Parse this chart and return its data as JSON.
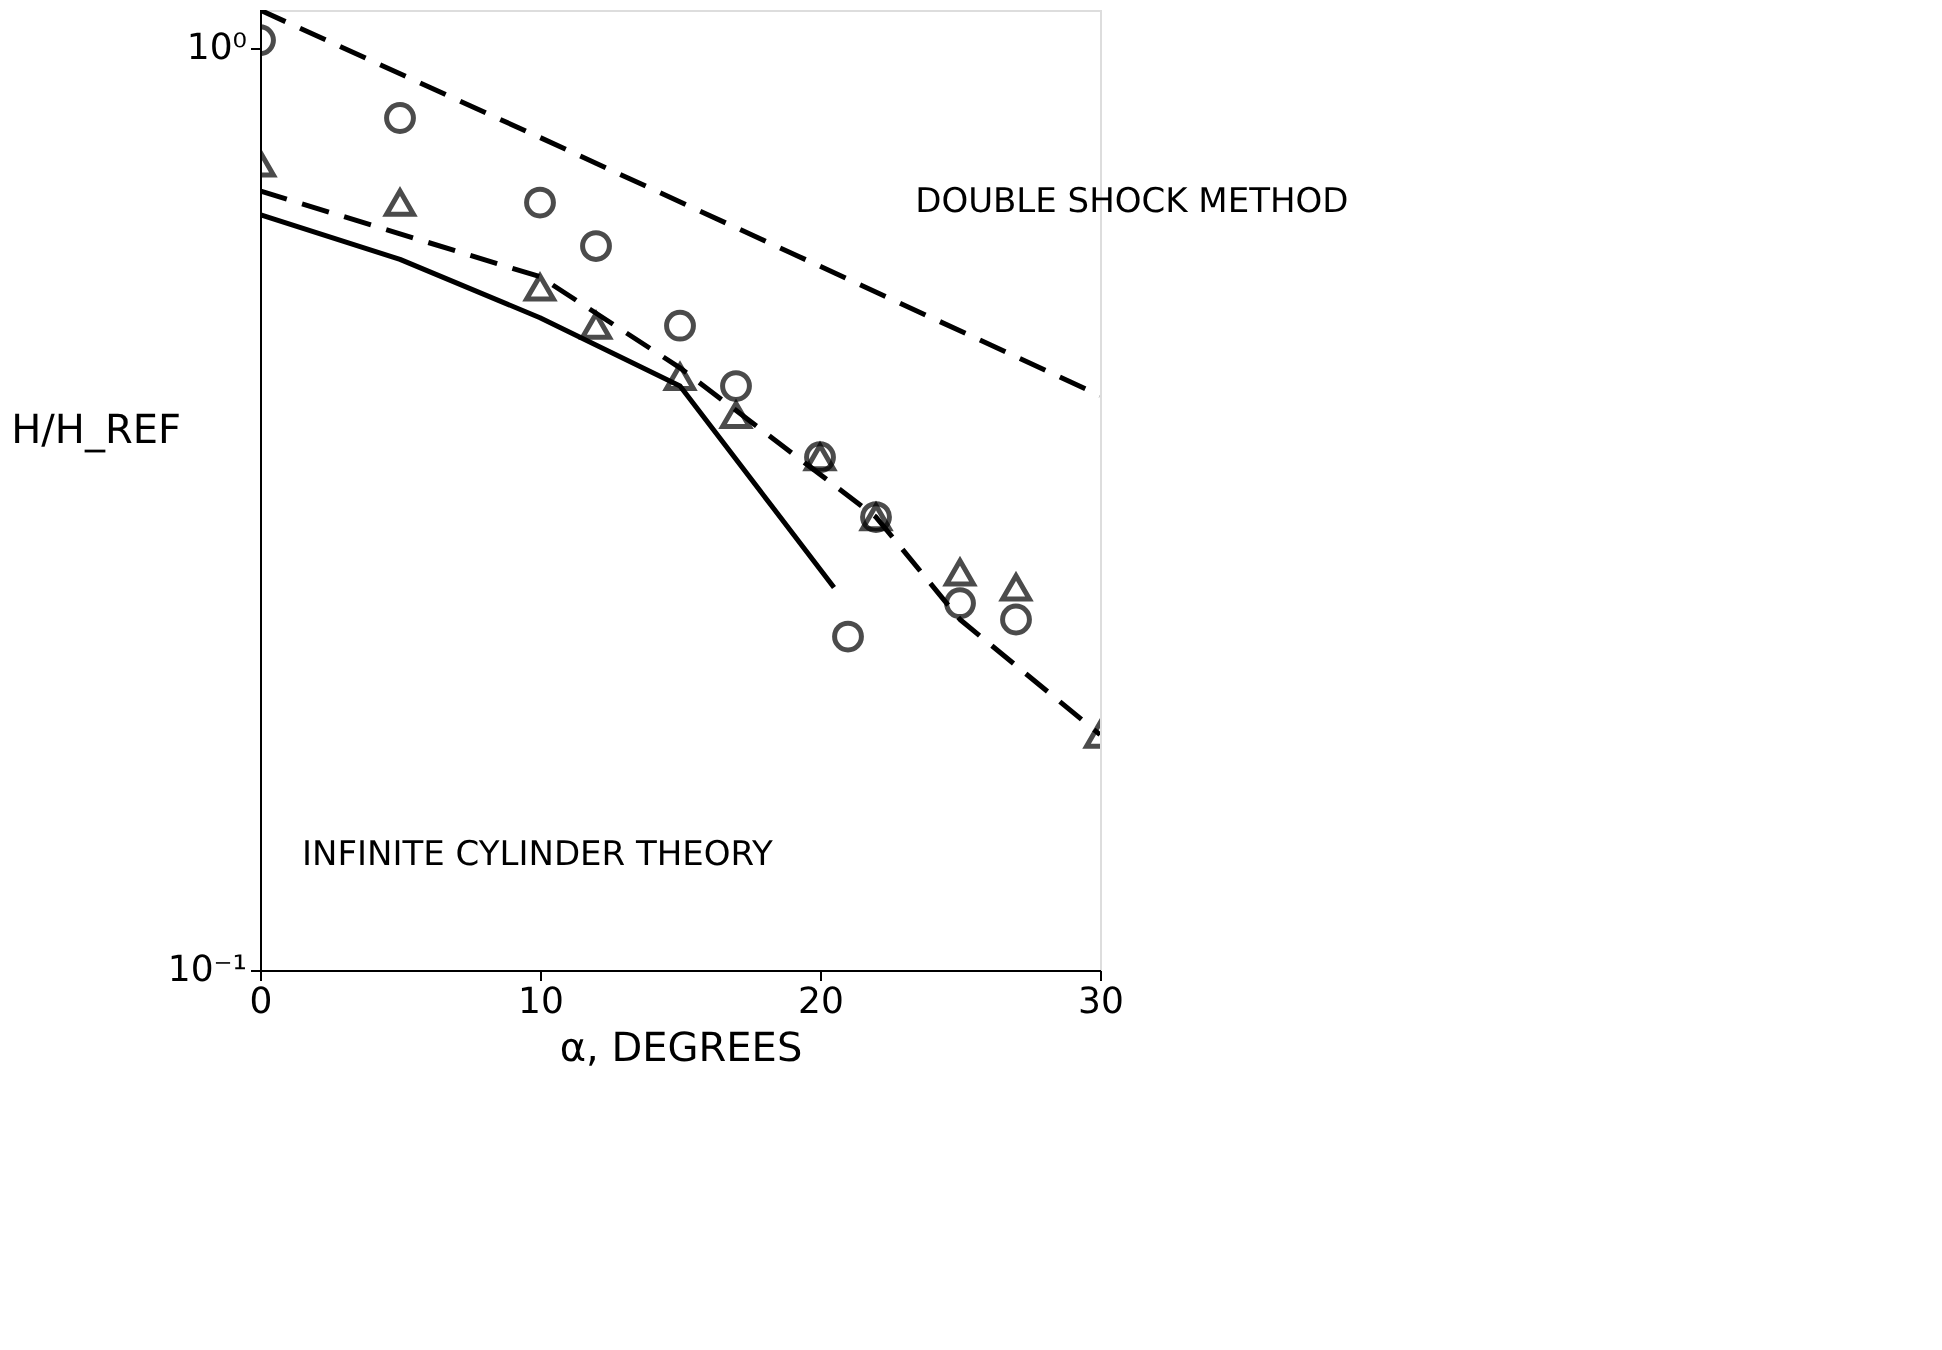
{
  "chart_data": {
    "type": "scatter",
    "xlabel": "α, DEGREES",
    "ylabel": "H/H_REF",
    "xlim": [
      0,
      30
    ],
    "xticks": [
      0,
      10,
      20,
      30
    ],
    "ylim": [
      0.1,
      1.1
    ],
    "yticks": [
      {
        "value": 1,
        "label": "10⁰"
      },
      {
        "value": 0.1,
        "label": "10⁻¹"
      }
    ],
    "log": "y",
    "grid": false,
    "series": [
      {
        "marker": "circle",
        "color": "#000000",
        "x": [
          0,
          5,
          10,
          12,
          15,
          17,
          20,
          21,
          22,
          25,
          27
        ],
        "values": [
          1.02,
          0.84,
          0.68,
          0.61,
          0.5,
          0.43,
          0.36,
          0.23,
          0.31,
          0.25,
          0.24
        ]
      },
      {
        "marker": "triangle",
        "color": "#000000",
        "x": [
          0,
          5,
          10,
          12,
          15,
          17,
          20,
          22,
          25,
          27,
          30
        ],
        "values": [
          0.75,
          0.68,
          0.55,
          0.5,
          0.44,
          0.4,
          0.36,
          0.31,
          0.27,
          0.26,
          0.18
        ]
      },
      {
        "type": "line",
        "line_style": "dashed",
        "color": "#000000",
        "x": [
          0,
          10,
          20,
          30
        ],
        "values": [
          1.1,
          0.8,
          0.58,
          0.42
        ]
      },
      {
        "type": "line",
        "line_style": "solid",
        "color": "#000000",
        "x": [
          0,
          5,
          10,
          15,
          20.5
        ],
        "values": [
          0.66,
          0.59,
          0.51,
          0.43,
          0.26
        ]
      },
      {
        "type": "line",
        "line_style": "dashed",
        "color": "#000000",
        "x": [
          0,
          10,
          15,
          22,
          25,
          30
        ],
        "values": [
          0.7,
          0.565,
          0.45,
          0.31,
          0.24,
          0.18
        ]
      }
    ],
    "annotations": [
      "DOUBLE SHOCK METHOD",
      "INFINITE CYLINDER THEORY"
    ]
  }
}
